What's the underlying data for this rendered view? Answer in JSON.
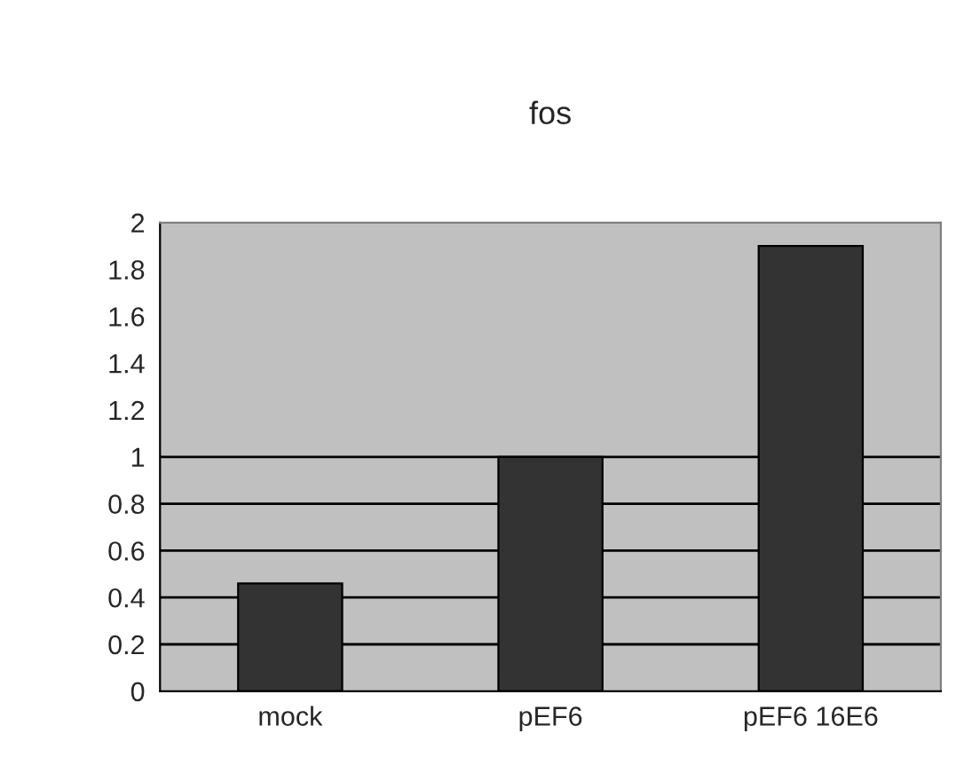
{
  "chart_data": {
    "type": "bar",
    "title": "fos",
    "categories": [
      "mock",
      "pEF6",
      "pEF6 16E6"
    ],
    "values": [
      0.46,
      1.0,
      1.9
    ],
    "color": "#333333",
    "ylim": [
      0,
      2
    ],
    "yticks": [
      0,
      0.2,
      0.4,
      0.6,
      0.8,
      1,
      1.2,
      1.4,
      1.6,
      1.8,
      2
    ],
    "grid": false,
    "ref_lines": [
      {
        "axis": "y",
        "value": 0.2,
        "color": "#000000"
      },
      {
        "axis": "y",
        "value": 0.4,
        "color": "#000000"
      },
      {
        "axis": "y",
        "value": 0.6,
        "color": "#000000"
      },
      {
        "axis": "y",
        "value": 0.8,
        "color": "#000000"
      },
      {
        "axis": "y",
        "value": 1,
        "color": "#000000"
      }
    ]
  }
}
